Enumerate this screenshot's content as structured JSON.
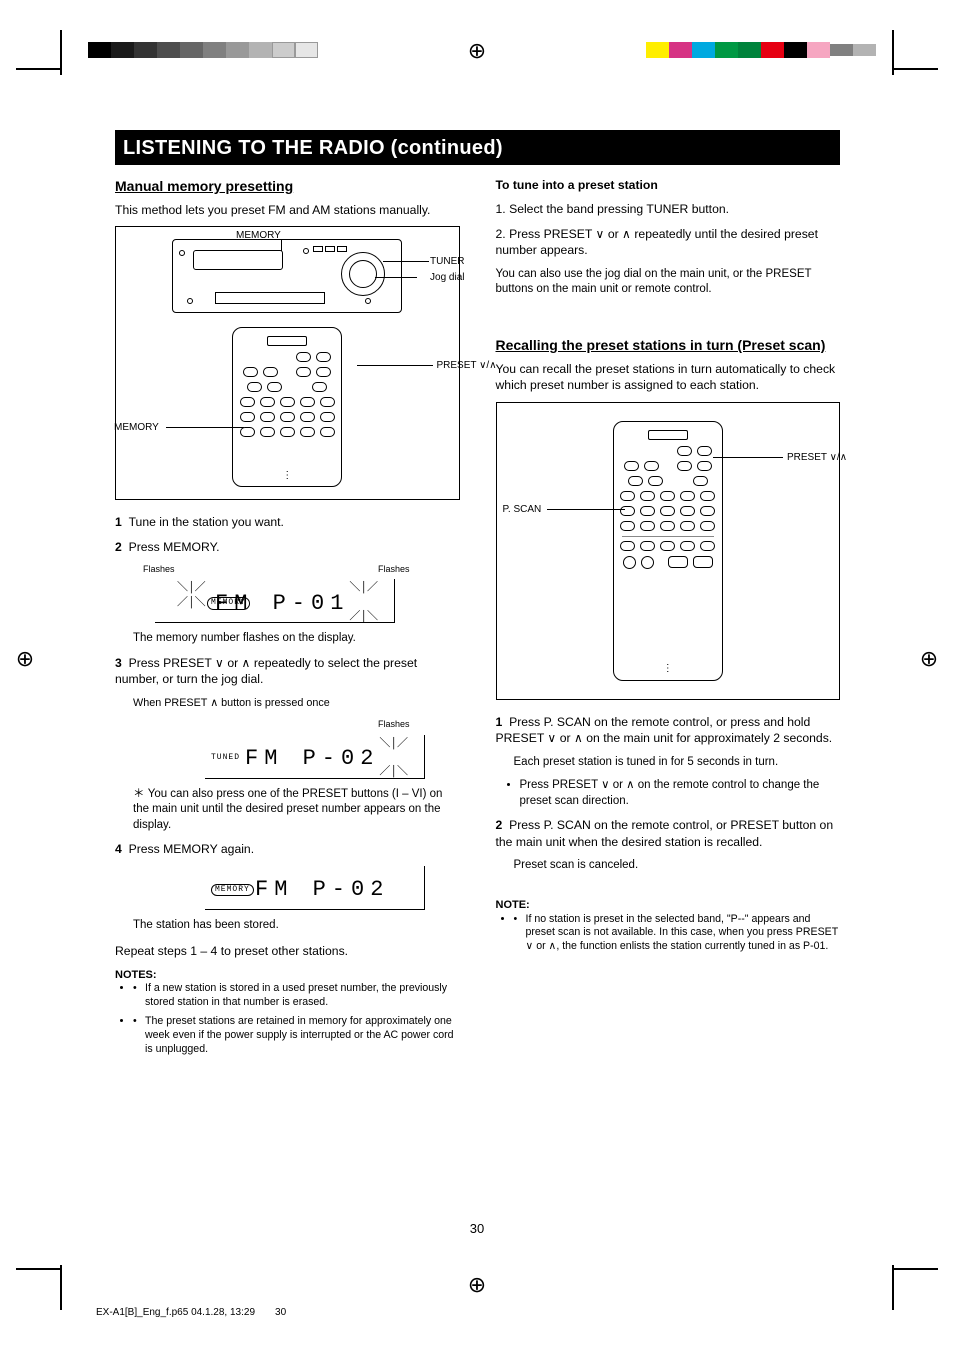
{
  "header": {
    "title": "LISTENING TO THE RADIO (continued)"
  },
  "left": {
    "section_title": "Manual memory presetting",
    "intro": "This method lets you preset FM and AM stations manually.",
    "fig_labels": {
      "memory_label": "MEMORY",
      "jog_label": "Jog dial",
      "tuner_label": "TUNER",
      "preset_down_up": "PRESET ∨/∧",
      "memory_label_remote": "MEMORY"
    },
    "step1_label": "1",
    "step1_text": "Tune in the station you want.",
    "step2_label": "2",
    "step2_text_a": "Press MEMORY.",
    "step2_flashes": "Flashes",
    "step2_memory": "The memory number flashes on the display.",
    "step3_label": "3",
    "step3_text": "Press PRESET ∨ or ∧ repeatedly to select the preset number, or turn the jog dial.",
    "step3_note": "When PRESET ∧ button is pressed once",
    "step3_alt": "You can also press one of the PRESET buttons (I – VI) on the main unit until the desired preset number appears on the display.",
    "step4_label": "4",
    "step4_text": "Press MEMORY again.",
    "step4_after": "The station has been stored.",
    "repeat": "Repeat steps 1 – 4 to preset other stations.",
    "notes_head": "NOTES:",
    "notes": [
      "If a new station is stored in a used preset number, the previously stored station in that number is erased.",
      "The preset stations are retained in memory for approximately one week even if the power supply is interrupted or the AC power cord is unplugged."
    ],
    "lcd": {
      "s2_text": "FM   P-01",
      "s2_memory_tag": "MEMORY",
      "s3_text": "FM   P-02",
      "s3_tune_tag": "TUNED",
      "s4_text": "FM   P-02",
      "s4_memory_tag": "MEMORY"
    }
  },
  "right": {
    "tune_head": "To tune into a preset station",
    "tune_steps": [
      "Select the band pressing TUNER button.",
      "Press PRESET ∨ or ∧ repeatedly until the desired preset number appears."
    ],
    "tune_alt": "You can also use the jog dial on the main unit, or the PRESET buttons on the main unit or remote control.",
    "section_title": "Recalling the preset stations in turn (Preset scan)",
    "intro": "You can recall the preset stations in turn automatically to check which preset number is assigned to each station.",
    "fig_labels": {
      "preset_down_up": "PRESET ∨/∧",
      "p_scan": "P. SCAN"
    },
    "step1_text": "Press P. SCAN on the remote control, or press and hold PRESET ∨ or ∧ on the main unit for approximately 2 seconds.",
    "step1_after": "Each preset station is tuned in for 5 seconds in turn.",
    "step1_bullets": [
      "Press PRESET ∨ or ∧ on the remote control to change the preset scan direction."
    ],
    "step2_text": "Press P. SCAN on the remote control, or PRESET button on the main unit when the desired station is recalled.",
    "step2_after": "Preset scan is canceled.",
    "notes_head": "NOTE:",
    "notes": [
      "If no station is preset in the selected band, \"P--\" appears and preset scan is not available. In this case, when you press PRESET ∨ or ∧, the function enlists the station currently tuned in as P-01."
    ]
  },
  "swatches_left": [
    "#000000",
    "#1a1a1a",
    "#333333",
    "#4d4d4d",
    "#666666",
    "#808080",
    "#999999",
    "#b3b3b3",
    "#cccccc",
    "#e6e6e6"
  ],
  "swatches_right": [
    "#ffee00",
    "#d63384",
    "#00a9e0",
    "#009944",
    "#00833c",
    "#e60012",
    "#000000",
    "#f6a6c1",
    "#808080",
    "#b3b3b3"
  ],
  "page_number": "30",
  "footer_file": "EX-A1[B]_Eng_f.p65                                                                                                        04.1.28, 13:29"
}
